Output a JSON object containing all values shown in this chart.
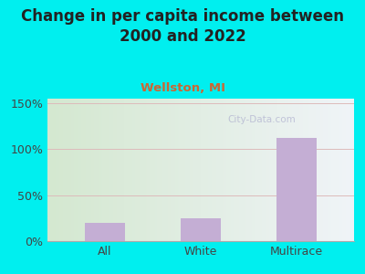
{
  "title": "Change in per capita income between\n2000 and 2022",
  "subtitle": "Wellston, MI",
  "categories": [
    "All",
    "White",
    "Multirace"
  ],
  "values": [
    20,
    25,
    112
  ],
  "bar_color": "#c4aed4",
  "figure_bg": "#00efef",
  "plot_bg_left": "#d4e8d0",
  "plot_bg_right": "#f0f4f8",
  "ylabel_ticks": [
    0,
    50,
    100,
    150
  ],
  "ylim": [
    0,
    155
  ],
  "title_fontsize": 12,
  "subtitle_fontsize": 9.5,
  "tick_fontsize": 9,
  "subtitle_color": "#cc6633",
  "title_color": "#222222",
  "watermark": "City-Data.com",
  "grid_color": "#ddbbbb",
  "axis_label_color": "#444444"
}
